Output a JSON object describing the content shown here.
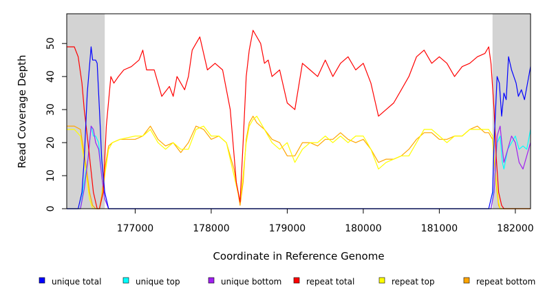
{
  "chart_data": {
    "type": "line",
    "title": "",
    "xlabel": "Coordinate in Reference Genome",
    "ylabel": "Read Coverage Depth",
    "xlim": [
      176100,
      182200
    ],
    "ylim": [
      0,
      59
    ],
    "xticks": [
      177000,
      178000,
      179000,
      180000,
      181000,
      182000
    ],
    "yticks": [
      0,
      10,
      20,
      30,
      40,
      50
    ],
    "shaded_regions": [
      [
        176100,
        176600
      ],
      [
        181700,
        182200
      ]
    ],
    "shaded_color": "#d3d3d3",
    "grid": false,
    "legend_position": "bottom",
    "legend": [
      {
        "label": "unique total",
        "color": "#0000ff"
      },
      {
        "label": "unique top",
        "color": "#00ffff"
      },
      {
        "label": "unique bottom",
        "color": "#a020f0"
      },
      {
        "label": "repeat total",
        "color": "#ff0000"
      },
      {
        "label": "repeat top",
        "color": "#ffff00"
      },
      {
        "label": "repeat bottom",
        "color": "#ffa500"
      }
    ],
    "series": [
      {
        "color": "#0000ff",
        "x": [
          176100,
          176250,
          176300,
          176330,
          176370,
          176420,
          176440,
          176480,
          176500,
          176530,
          176560,
          176600,
          176650,
          176700,
          181650,
          181700,
          181720,
          181760,
          181790,
          181820,
          181850,
          181880,
          181910,
          181950,
          181980,
          182010,
          182040,
          182080,
          182120,
          182160,
          182200
        ],
        "y": [
          0,
          0,
          5,
          15,
          35,
          49,
          45,
          45,
          44,
          30,
          15,
          5,
          0,
          0,
          0,
          5,
          20,
          40,
          38,
          28,
          35,
          33,
          46,
          42,
          40,
          38,
          34,
          36,
          33,
          38,
          43
        ]
      },
      {
        "color": "#00ffff",
        "x": [
          176100,
          176280,
          176330,
          176380,
          176420,
          176450,
          176480,
          176520,
          176560,
          176600,
          176650,
          181680,
          181720,
          181760,
          181800,
          181830,
          181850,
          181900,
          181950,
          182000,
          182050,
          182100,
          182150,
          182200
        ],
        "y": [
          0,
          0,
          8,
          15,
          25,
          22,
          22,
          20,
          10,
          3,
          0,
          0,
          6,
          20,
          22,
          14,
          12,
          18,
          20,
          22,
          18,
          19,
          18,
          24
        ]
      },
      {
        "color": "#a020f0",
        "x": [
          176100,
          176280,
          176330,
          176380,
          176420,
          176450,
          176480,
          176520,
          176560,
          176600,
          176650,
          181680,
          181720,
          181760,
          181800,
          181830,
          181850,
          181900,
          181950,
          182000,
          182050,
          182100,
          182150,
          182200
        ],
        "y": [
          0,
          0,
          6,
          15,
          25,
          24,
          20,
          18,
          10,
          3,
          0,
          0,
          5,
          22,
          25,
          18,
          14,
          18,
          22,
          20,
          14,
          12,
          16,
          20
        ]
      },
      {
        "color": "#ff0000",
        "x": [
          176100,
          176200,
          176250,
          176300,
          176330,
          176380,
          176450,
          176500,
          176530,
          176580,
          176620,
          176680,
          176720,
          176780,
          176850,
          176950,
          177050,
          177100,
          177150,
          177250,
          177350,
          177450,
          177500,
          177550,
          177650,
          177700,
          177750,
          177800,
          177850,
          177950,
          178050,
          178150,
          178250,
          178330,
          178380,
          178420,
          178460,
          178500,
          178550,
          178650,
          178700,
          178750,
          178800,
          178900,
          179000,
          179100,
          179200,
          179300,
          179400,
          179500,
          179600,
          179700,
          179800,
          179900,
          180000,
          180100,
          180200,
          180300,
          180400,
          180500,
          180600,
          180700,
          180800,
          180900,
          181000,
          181100,
          181200,
          181300,
          181400,
          181500,
          181600,
          181650,
          181680,
          181720,
          181750,
          181780,
          181820,
          181850,
          181900,
          182000,
          182200
        ],
        "y": [
          49,
          49,
          46,
          38,
          30,
          20,
          5,
          0,
          0,
          5,
          25,
          40,
          38,
          40,
          42,
          43,
          45,
          48,
          42,
          42,
          34,
          37,
          34,
          40,
          36,
          40,
          48,
          50,
          52,
          42,
          44,
          42,
          30,
          8,
          2,
          20,
          40,
          48,
          54,
          50,
          44,
          45,
          40,
          42,
          32,
          30,
          44,
          42,
          40,
          45,
          40,
          44,
          46,
          42,
          44,
          38,
          28,
          30,
          32,
          36,
          40,
          46,
          48,
          44,
          46,
          44,
          40,
          43,
          44,
          46,
          47,
          49,
          44,
          30,
          15,
          5,
          1,
          0,
          0,
          0,
          0
        ]
      },
      {
        "color": "#ffff00",
        "x": [
          176100,
          176200,
          176280,
          176320,
          176360,
          176400,
          176440,
          176480,
          176500,
          176530,
          176560,
          176600,
          176650,
          176700,
          176800,
          177000,
          177100,
          177200,
          177300,
          177400,
          177500,
          177600,
          177700,
          177800,
          177900,
          178000,
          178100,
          178200,
          178300,
          178380,
          178420,
          178460,
          178500,
          178550,
          178600,
          178700,
          178800,
          178900,
          179000,
          179100,
          179200,
          179300,
          179400,
          179500,
          179600,
          179700,
          179800,
          179900,
          180000,
          180100,
          180200,
          180300,
          180400,
          180500,
          180600,
          180700,
          180800,
          180900,
          181000,
          181100,
          181200,
          181300,
          181400,
          181500,
          181600,
          181650,
          181700,
          181720,
          181750,
          181780,
          181800,
          181850,
          181900,
          182000,
          182200
        ],
        "y": [
          24,
          24,
          22,
          16,
          10,
          3,
          0,
          0,
          0,
          0,
          3,
          10,
          18,
          20,
          21,
          22,
          22,
          24,
          20,
          18,
          20,
          18,
          18,
          24,
          25,
          22,
          22,
          20,
          10,
          2,
          10,
          20,
          25,
          27,
          28,
          24,
          20,
          18,
          20,
          14,
          18,
          20,
          20,
          22,
          20,
          22,
          20,
          22,
          22,
          18,
          12,
          14,
          15,
          16,
          16,
          20,
          24,
          24,
          22,
          20,
          22,
          22,
          24,
          24,
          24,
          24,
          22,
          16,
          8,
          2,
          0,
          0,
          0,
          0,
          0
        ]
      },
      {
        "color": "#ffa500",
        "x": [
          176100,
          176200,
          176280,
          176320,
          176360,
          176400,
          176440,
          176480,
          176500,
          176530,
          176560,
          176600,
          176650,
          176700,
          176800,
          177000,
          177100,
          177200,
          177300,
          177400,
          177500,
          177600,
          177700,
          177800,
          177900,
          178000,
          178100,
          178200,
          178300,
          178380,
          178420,
          178460,
          178500,
          178550,
          178600,
          178700,
          178800,
          178900,
          179000,
          179100,
          179200,
          179300,
          179400,
          179500,
          179600,
          179700,
          179800,
          179900,
          180000,
          180100,
          180200,
          180300,
          180400,
          180500,
          180600,
          180700,
          180800,
          180900,
          181000,
          181100,
          181200,
          181300,
          181400,
          181500,
          181600,
          181650,
          181700,
          181720,
          181750,
          181780,
          181800,
          181850,
          181900,
          182000,
          182200
        ],
        "y": [
          25,
          25,
          24,
          18,
          12,
          5,
          1,
          0,
          0,
          0,
          4,
          12,
          19,
          20,
          21,
          21,
          22,
          25,
          21,
          19,
          20,
          17,
          20,
          25,
          24,
          21,
          22,
          20,
          12,
          1,
          8,
          21,
          26,
          28,
          26,
          24,
          21,
          20,
          16,
          16,
          20,
          20,
          19,
          21,
          21,
          23,
          21,
          20,
          21,
          18,
          14,
          15,
          15,
          16,
          18,
          21,
          23,
          23,
          21,
          21,
          22,
          22,
          24,
          25,
          23,
          23,
          21,
          15,
          7,
          1,
          0,
          0,
          0,
          0,
          0
        ]
      }
    ]
  }
}
